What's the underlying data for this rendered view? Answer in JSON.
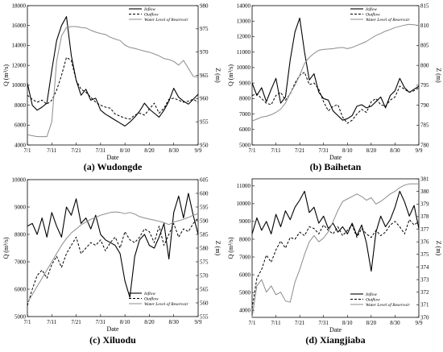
{
  "chart_data": [
    {
      "type": "line",
      "caption": "(a) Wudongde",
      "xlabel": "Date",
      "ylabel_left": "Q (m³/s)",
      "ylabel_right": "Z (m)",
      "x_ticks": [
        "7/1",
        "7/11",
        "7/21",
        "7/31",
        "8/10",
        "8/20",
        "8/30",
        "9/9"
      ],
      "y_left_ticks": [
        4000,
        6000,
        8000,
        10000,
        12000,
        14000,
        16000,
        18000
      ],
      "y_left_range": [
        4000,
        18000
      ],
      "y_right_ticks": [
        950,
        955,
        960,
        965,
        970,
        975,
        980
      ],
      "y_right_range": [
        950,
        980
      ],
      "legend": [
        "Inflow",
        "Outflow",
        "Water Level of Reservoir"
      ],
      "legend_position": "top-right",
      "x_days": [
        0,
        2,
        4,
        6,
        8,
        10,
        12,
        14,
        16,
        18,
        20,
        22,
        24,
        26,
        28,
        30,
        32,
        34,
        36,
        38,
        40,
        42,
        44,
        46,
        48,
        50,
        52,
        54,
        56,
        58,
        60,
        62,
        64,
        66,
        68,
        70
      ],
      "series": [
        {
          "name": "Inflow",
          "axis": "left",
          "style": "solid",
          "values": [
            10200,
            8000,
            7500,
            7800,
            8200,
            11500,
            14500,
            16000,
            16900,
            13000,
            10500,
            9000,
            9600,
            8500,
            8700,
            7500,
            7100,
            6800,
            6500,
            6200,
            5900,
            6300,
            6800,
            7400,
            8200,
            7600,
            7200,
            6800,
            7500,
            8400,
            9700,
            8800,
            8400,
            8100,
            8600,
            9100
          ]
        },
        {
          "name": "Outflow",
          "axis": "left",
          "style": "dashed",
          "values": [
            9000,
            8600,
            8300,
            8500,
            8100,
            8500,
            9500,
            11000,
            12800,
            12500,
            10500,
            9600,
            9300,
            8800,
            8300,
            8000,
            7800,
            7700,
            7100,
            6900,
            6700,
            6600,
            7000,
            7200,
            7000,
            7600,
            8200,
            7200,
            7700,
            8600,
            8700,
            8500,
            8300,
            8400,
            8600,
            8300
          ]
        },
        {
          "name": "Water Level of Reservoir",
          "axis": "right",
          "style": "gray",
          "values": [
            952.2,
            952.0,
            951.8,
            951.8,
            951.8,
            955.0,
            968.0,
            973.5,
            975.3,
            975.5,
            975.5,
            975.3,
            975.2,
            974.7,
            974.3,
            974.0,
            973.8,
            973.2,
            972.8,
            972.5,
            971.5,
            971.0,
            970.8,
            970.5,
            970.2,
            970.0,
            969.6,
            969.2,
            968.6,
            968.4,
            968.0,
            967.2,
            968.2,
            966.5,
            964.8,
            964.6
          ]
        }
      ]
    },
    {
      "type": "line",
      "caption": "(b) Baihetan",
      "xlabel": "Date",
      "ylabel_left": "Q (m³/s)",
      "ylabel_right": "Z (m)",
      "x_ticks": [
        "7/1",
        "7/11",
        "7/21",
        "7/31",
        "8/10",
        "8/20",
        "8/30",
        "9/9"
      ],
      "y_left_ticks": [
        5000,
        6000,
        7000,
        8000,
        9000,
        10000,
        11000,
        12000,
        13000,
        14000
      ],
      "y_left_range": [
        5000,
        14000
      ],
      "y_right_ticks": [
        780,
        785,
        790,
        795,
        800,
        805,
        810,
        815
      ],
      "y_right_range": [
        780,
        815
      ],
      "legend": [
        "Inflow",
        "Outflow",
        "Water Level of Reservoir"
      ],
      "legend_position": "top-right",
      "x_days": [
        0,
        2,
        4,
        6,
        8,
        10,
        12,
        14,
        16,
        18,
        20,
        22,
        24,
        26,
        28,
        30,
        32,
        34,
        36,
        38,
        40,
        42,
        44,
        46,
        48,
        50,
        52,
        54,
        56,
        58,
        60,
        62,
        64,
        66,
        68,
        70
      ],
      "series": [
        {
          "name": "Inflow",
          "axis": "left",
          "style": "solid",
          "values": [
            9000,
            8200,
            8700,
            7800,
            8600,
            9300,
            7700,
            8100,
            10500,
            12300,
            13200,
            11000,
            9200,
            9600,
            8400,
            8000,
            7900,
            7200,
            6900,
            6600,
            6700,
            6900,
            7500,
            7600,
            7400,
            7500,
            7800,
            8100,
            7400,
            8200,
            8500,
            9300,
            8700,
            8400,
            8600,
            8800
          ]
        },
        {
          "name": "Outflow",
          "axis": "left",
          "style": "dashed",
          "values": [
            8200,
            8300,
            8000,
            7700,
            7600,
            8200,
            8400,
            7900,
            8300,
            9000,
            9500,
            9700,
            8900,
            9000,
            8600,
            7800,
            7200,
            7500,
            7600,
            6800,
            6400,
            6600,
            7000,
            7300,
            7100,
            7800,
            8000,
            7600,
            7500,
            7900,
            8100,
            8800,
            8600,
            8400,
            8500,
            8700
          ]
        },
        {
          "name": "Water Level of Reservoir",
          "axis": "right",
          "style": "gray",
          "values": [
            786.0,
            786.5,
            787.0,
            787.2,
            787.6,
            788.2,
            789.0,
            790.5,
            793.0,
            795.0,
            797.5,
            800.5,
            802.0,
            803.0,
            803.8,
            804.0,
            804.1,
            804.2,
            804.4,
            804.5,
            804.2,
            804.5,
            805.0,
            805.5,
            806.0,
            806.8,
            807.5,
            808.0,
            808.6,
            809.0,
            809.5,
            809.8,
            810.1,
            810.3,
            810.2,
            810.0
          ]
        }
      ]
    },
    {
      "type": "line",
      "caption": "(c) Xiluodu",
      "xlabel": "Date",
      "ylabel_left": "Q (m³/s)",
      "ylabel_right": "Z (m)",
      "x_ticks": [
        "7/1",
        "7/11",
        "7/21",
        "7/31",
        "8/10",
        "8/20",
        "8/30",
        "9/9"
      ],
      "y_left_ticks": [
        5000,
        6000,
        7000,
        8000,
        9000,
        10000
      ],
      "y_left_range": [
        5000,
        10000
      ],
      "y_right_ticks": [
        555,
        560,
        565,
        570,
        575,
        580,
        585,
        590,
        595,
        600,
        605
      ],
      "y_right_range": [
        555,
        605
      ],
      "legend": [
        "Inflow",
        "Outflow",
        "Water Level of Reservoir"
      ],
      "legend_position": "bottom-right",
      "x_days": [
        0,
        2,
        4,
        6,
        8,
        10,
        12,
        14,
        16,
        18,
        20,
        22,
        24,
        26,
        28,
        30,
        32,
        34,
        36,
        38,
        40,
        42,
        44,
        46,
        48,
        50,
        52,
        54,
        56,
        58,
        60,
        62,
        64,
        66,
        68,
        70
      ],
      "series": [
        {
          "name": "Inflow",
          "axis": "left",
          "style": "solid",
          "values": [
            8300,
            8400,
            8000,
            8600,
            7900,
            8800,
            8300,
            7900,
            9000,
            8700,
            9300,
            8400,
            8600,
            8200,
            8700,
            8000,
            7800,
            7700,
            7600,
            7300,
            6300,
            5700,
            7200,
            7800,
            8000,
            7600,
            7500,
            7900,
            8400,
            7100,
            8800,
            9400,
            8600,
            9500,
            8700,
            8000
          ]
        },
        {
          "name": "Outflow",
          "axis": "left",
          "style": "dashed",
          "values": [
            5400,
            6000,
            6500,
            6700,
            6400,
            6900,
            7200,
            6800,
            7300,
            7600,
            7900,
            7300,
            7500,
            7700,
            7600,
            7800,
            7400,
            7700,
            7900,
            7500,
            8100,
            7800,
            7700,
            7900,
            8200,
            8100,
            7700,
            8300,
            7600,
            8000,
            8400,
            7900,
            8200,
            8100,
            8400,
            8600
          ]
        },
        {
          "name": "Water Level of Reservoir",
          "axis": "right",
          "style": "gray",
          "values": [
            560.0,
            563.0,
            566.0,
            569.0,
            572.0,
            575.0,
            578.0,
            581.0,
            583.5,
            585.5,
            587.0,
            588.5,
            589.5,
            590.5,
            591.2,
            592.0,
            592.5,
            593.0,
            593.2,
            593.0,
            592.6,
            593.0,
            592.4,
            591.5,
            591.0,
            590.6,
            590.2,
            589.8,
            589.3,
            588.6,
            589.5,
            590.0,
            590.5,
            591.2,
            592.0,
            592.5
          ]
        }
      ]
    },
    {
      "type": "line",
      "caption": "(d) Xiangjiaba",
      "xlabel": "Date",
      "ylabel_left": "Q (m³/s)",
      "ylabel_right": "Z (m)",
      "x_ticks": [
        "7/1",
        "7/11",
        "7/21",
        "7/31",
        "8/10",
        "8/20",
        "8/30",
        "9/9"
      ],
      "y_left_ticks": [
        4000,
        5000,
        6000,
        7000,
        8000,
        9000,
        10000,
        11000
      ],
      "y_left_range": [
        3600,
        11400
      ],
      "y_right_ticks": [
        370,
        371,
        372,
        373,
        374,
        375,
        376,
        377,
        378,
        379,
        380,
        381
      ],
      "y_right_range": [
        370,
        381
      ],
      "legend": [
        "Inflow",
        "Outflow",
        "Water Level of Reservoir"
      ],
      "legend_position": "bottom-right",
      "x_days": [
        0,
        2,
        4,
        6,
        8,
        10,
        12,
        14,
        16,
        18,
        20,
        22,
        24,
        26,
        28,
        30,
        32,
        34,
        36,
        38,
        40,
        42,
        44,
        46,
        48,
        50,
        52,
        54,
        56,
        58,
        60,
        62,
        64,
        66,
        68,
        70
      ],
      "series": [
        {
          "name": "Inflow",
          "axis": "left",
          "style": "solid",
          "values": [
            8300,
            9200,
            8500,
            9000,
            8300,
            9400,
            8700,
            9600,
            9100,
            9800,
            10200,
            10700,
            9500,
            9800,
            8900,
            9300,
            8600,
            8900,
            8400,
            8700,
            8300,
            8900,
            8200,
            8800,
            7800,
            6200,
            8400,
            9300,
            8700,
            9100,
            9800,
            10700,
            10100,
            9300,
            9900,
            8600
          ]
        },
        {
          "name": "Outflow",
          "axis": "left",
          "style": "dashed",
          "values": [
            4100,
            5800,
            6300,
            7100,
            6700,
            7400,
            7900,
            7500,
            8100,
            8000,
            8400,
            8200,
            8700,
            8600,
            8300,
            8800,
            8500,
            8300,
            8700,
            8200,
            8500,
            8800,
            8100,
            8600,
            8300,
            8100,
            8500,
            8200,
            8400,
            8800,
            9000,
            8700,
            8300,
            9100,
            8800,
            9000
          ]
        },
        {
          "name": "Water Level of Reservoir",
          "axis": "right",
          "style": "gray",
          "values": [
            370.0,
            372.5,
            373.0,
            372.0,
            372.5,
            371.8,
            372.0,
            371.3,
            371.2,
            372.8,
            373.8,
            375.0,
            376.0,
            376.5,
            376.0,
            376.3,
            376.8,
            377.6,
            378.5,
            379.2,
            379.4,
            379.6,
            379.8,
            379.6,
            379.3,
            379.5,
            379.0,
            379.2,
            379.5,
            379.8,
            380.0,
            380.3,
            380.5,
            380.6,
            380.6,
            380.6
          ]
        }
      ]
    }
  ]
}
